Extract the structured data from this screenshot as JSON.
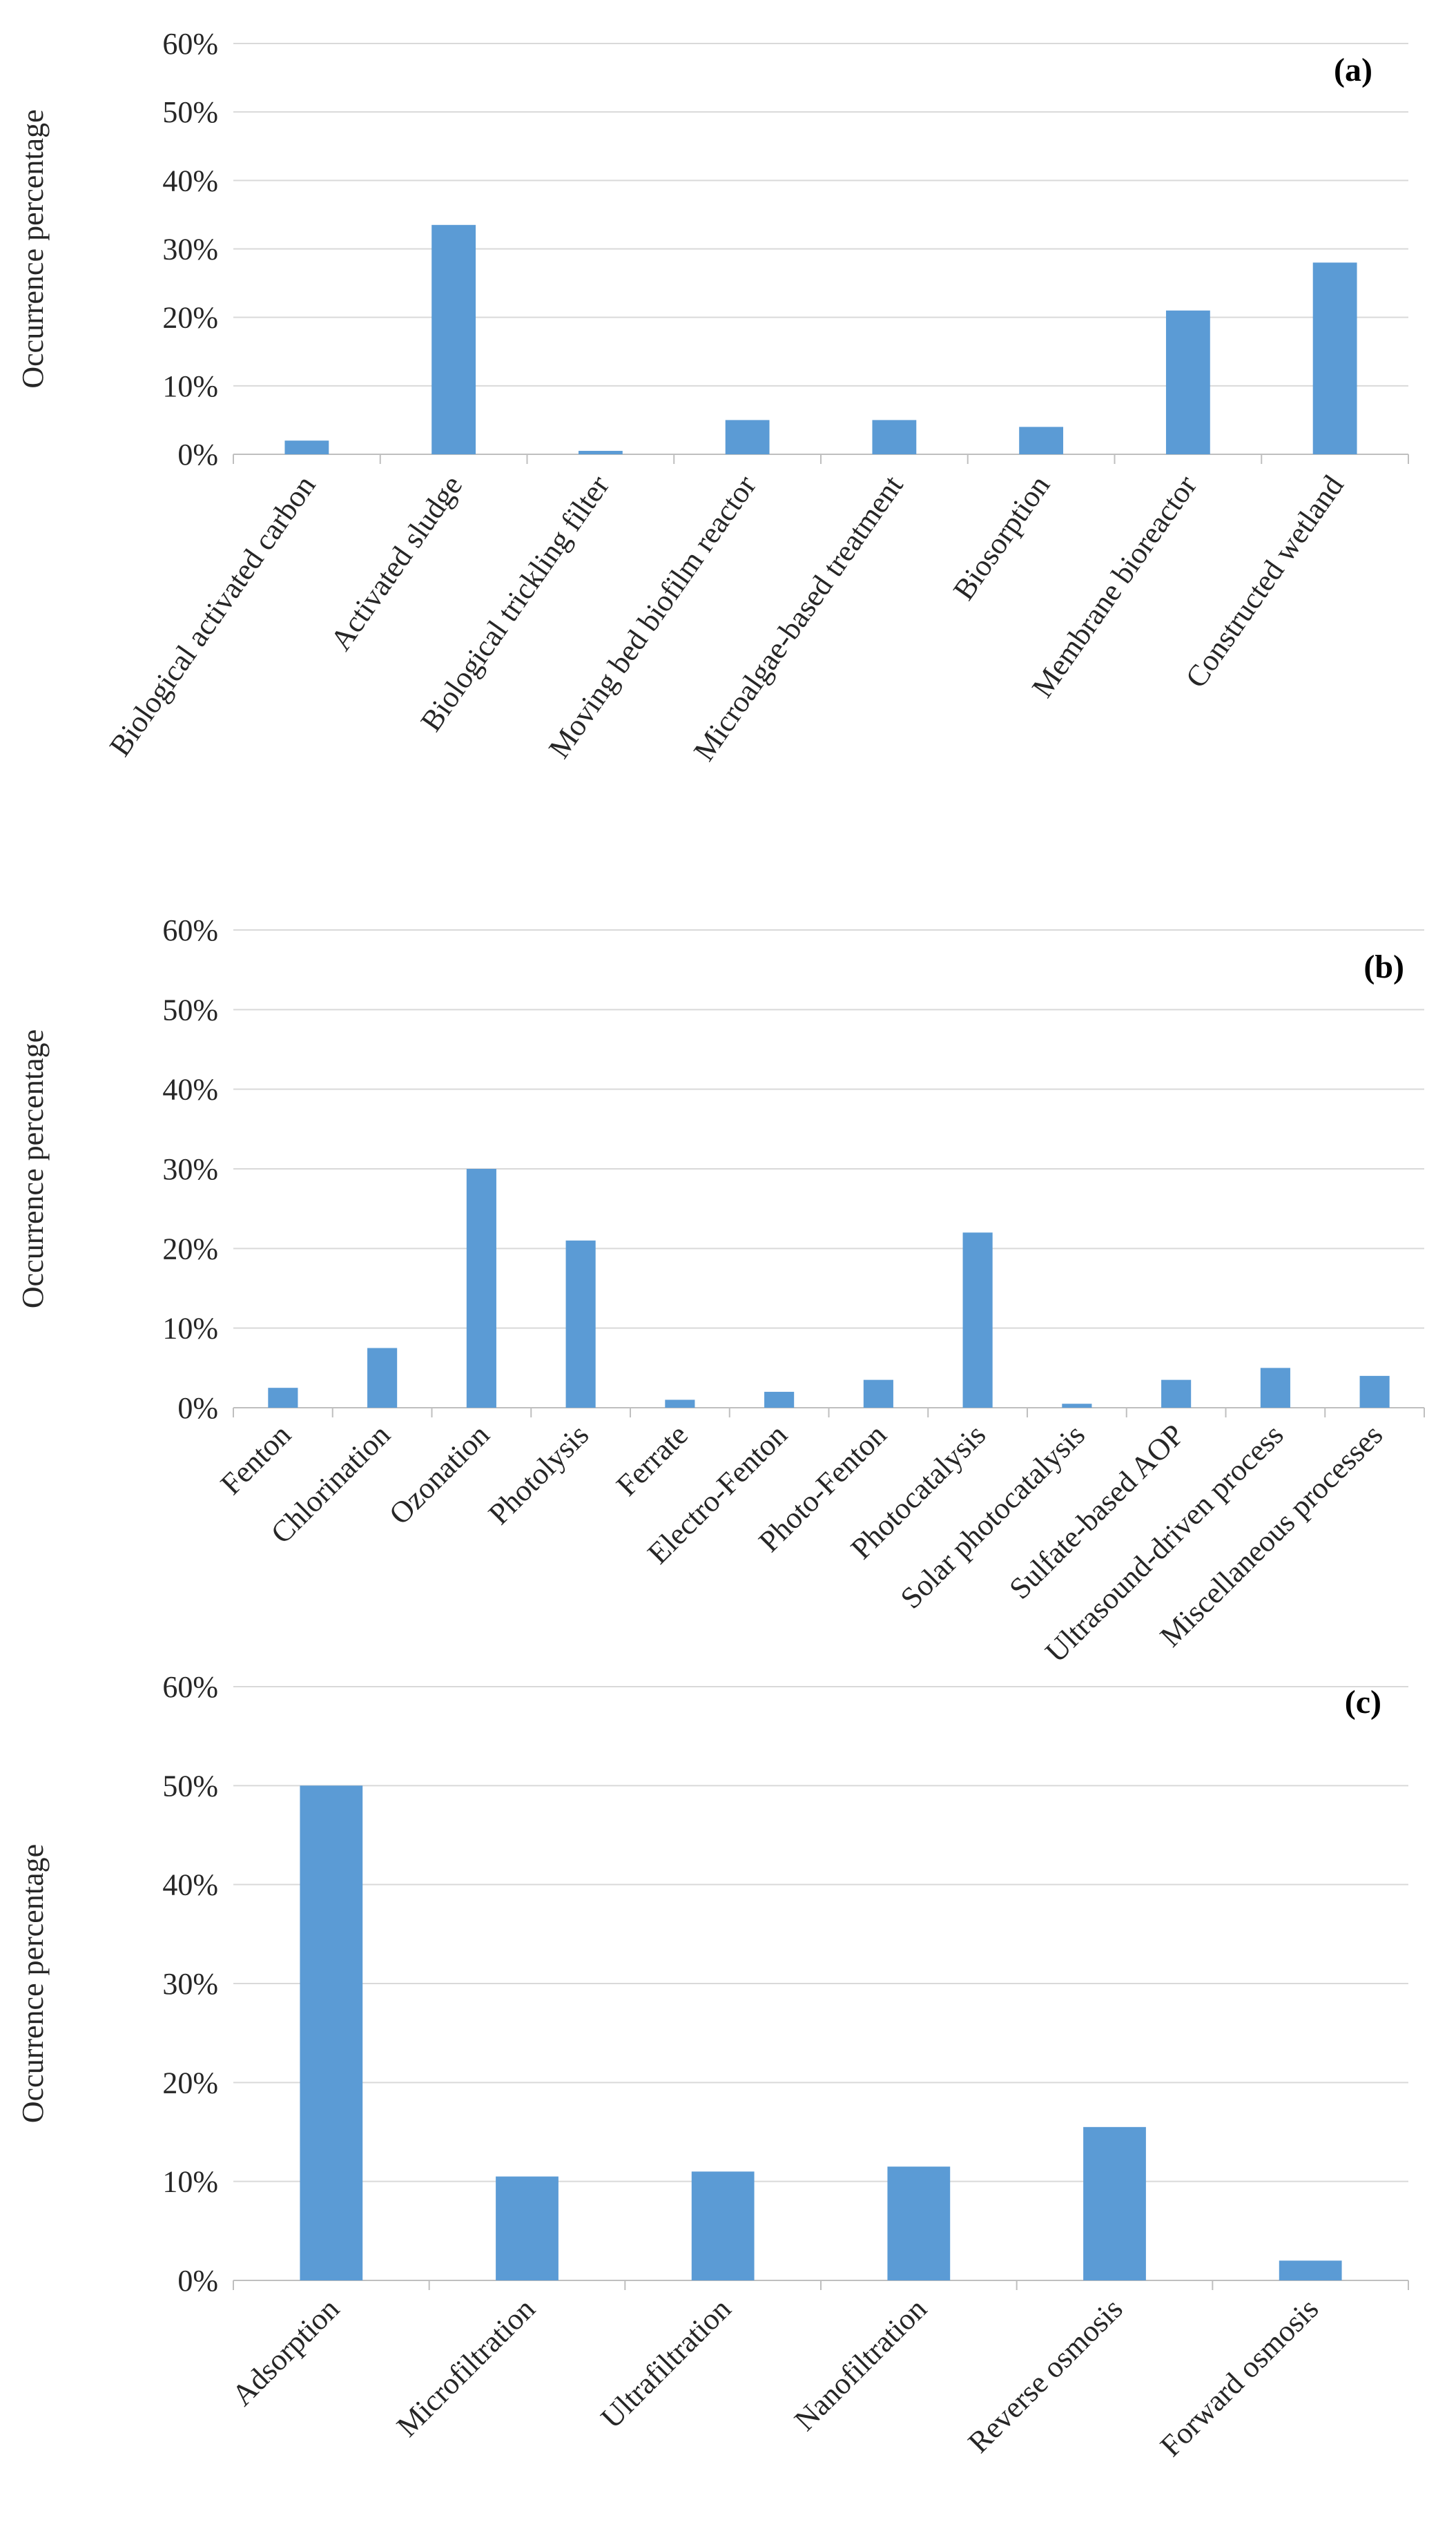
{
  "chart_data": [
    {
      "type": "bar",
      "panel": "(a)",
      "ylabel": "Occurrence percentage",
      "ylim": [
        0,
        60
      ],
      "yticks": [
        0,
        10,
        20,
        30,
        40,
        50,
        60
      ],
      "ytick_labels": [
        "0%",
        "10%",
        "20%",
        "30%",
        "40%",
        "50%",
        "60%"
      ],
      "grid": true,
      "categories": [
        "Biological activated carbon",
        "Activated sludge",
        "Biological trickling filter",
        "Moving bed biofilm reactor",
        "Microalgae-based treatment",
        "Biosorption",
        "Membrane bioreactor",
        "Constructed wetland"
      ],
      "values": [
        2,
        33.5,
        0.5,
        5,
        5,
        4,
        21,
        28
      ],
      "color": "#5b9bd5"
    },
    {
      "type": "bar",
      "panel": "(b)",
      "ylabel": "Occurrence percentage",
      "ylim": [
        0,
        60
      ],
      "yticks": [
        0,
        10,
        20,
        30,
        40,
        50,
        60
      ],
      "ytick_labels": [
        "0%",
        "10%",
        "20%",
        "30%",
        "40%",
        "50%",
        "60%"
      ],
      "grid": true,
      "categories": [
        "Fenton",
        "Chlorination",
        "Ozonation",
        "Photolysis",
        "Ferrate",
        "Electro-Fenton",
        "Photo-Fenton",
        "Photocatalysis",
        "Solar photocatalysis",
        "Sulfate-based AOP",
        "Ultrasound-driven process",
        "Miscellaneous processes"
      ],
      "values": [
        2.5,
        7.5,
        30,
        21,
        1,
        2,
        3.5,
        22,
        0.5,
        3.5,
        5,
        4
      ],
      "color": "#5b9bd5"
    },
    {
      "type": "bar",
      "panel": "(c)",
      "ylabel": "Occurrence percentage",
      "ylim": [
        0,
        60
      ],
      "yticks": [
        0,
        10,
        20,
        30,
        40,
        50,
        60
      ],
      "ytick_labels": [
        "0%",
        "10%",
        "20%",
        "30%",
        "40%",
        "50%",
        "60%"
      ],
      "grid": true,
      "categories": [
        "Adsorption",
        "Microfiltration",
        "Ultrafiltration",
        "Nanofiltration",
        "Reverse osmosis",
        "Forward osmosis"
      ],
      "values": [
        50,
        10.5,
        11,
        11.5,
        15.5,
        2
      ],
      "color": "#5b9bd5"
    }
  ]
}
